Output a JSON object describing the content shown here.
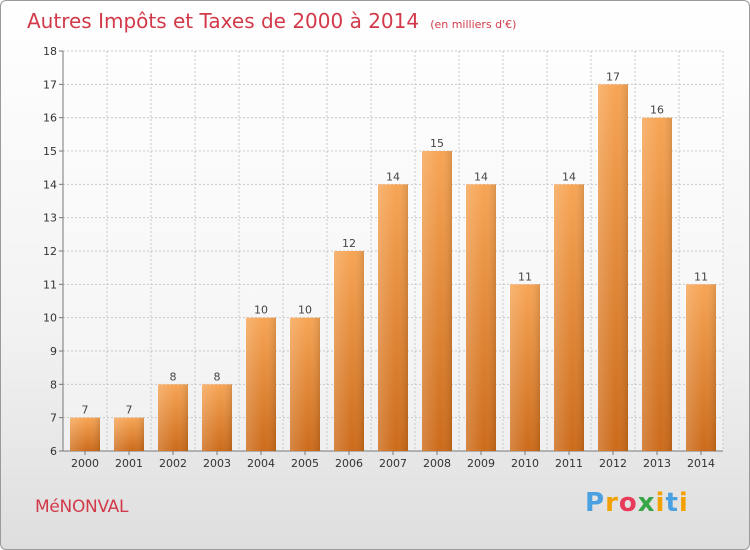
{
  "header": {
    "title": "Autres Impôts et Taxes de 2000 à 2014",
    "subtitle": "(en milliers d'€)"
  },
  "footer": {
    "town": "MéNONVAL",
    "logo": "Proxiti"
  },
  "colors": {
    "bar_top": "#f7a555",
    "bar_bottom": "#cc6b1a",
    "title": "#d23a4a"
  },
  "chart_data": {
    "type": "bar",
    "title": "Autres Impôts et Taxes de 2000 à 2014",
    "subtitle": "(en milliers d'€)",
    "categories": [
      "2000",
      "2001",
      "2002",
      "2003",
      "2004",
      "2005",
      "2006",
      "2007",
      "2008",
      "2009",
      "2010",
      "2011",
      "2012",
      "2013",
      "2014"
    ],
    "values": [
      7,
      7,
      8,
      8,
      10,
      10,
      12,
      14,
      15,
      14,
      11,
      14,
      17,
      16,
      11
    ],
    "ylim": [
      6,
      18
    ],
    "yticks": [
      6,
      7,
      8,
      9,
      10,
      11,
      12,
      13,
      14,
      15,
      16,
      17,
      18
    ],
    "grid": true,
    "legend": "none"
  }
}
